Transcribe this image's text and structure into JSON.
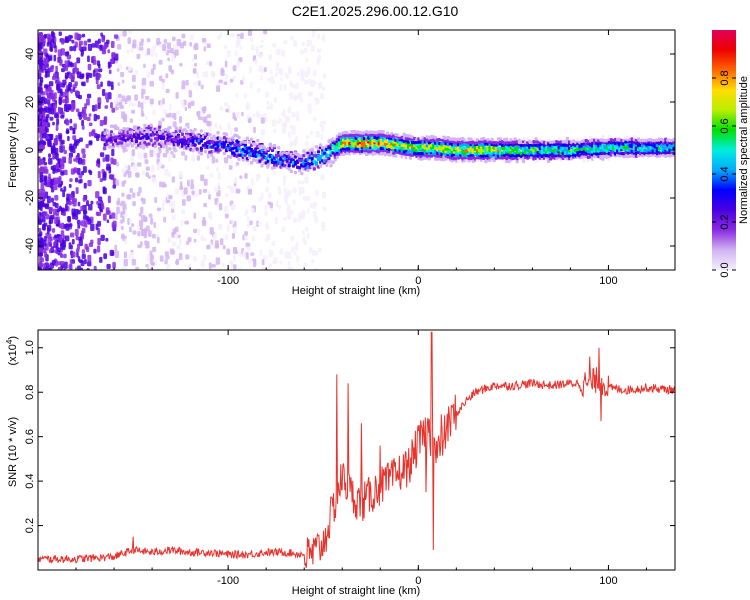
{
  "title": "C2E1.2025.296.00.12.G10",
  "chart_data": [
    {
      "type": "heatmap",
      "title": "C2E1.2025.296.00.12.G10",
      "xlabel": "Height of straight line (km)",
      "ylabel": "Frequency (Hz)",
      "xlim": [
        -200,
        135
      ],
      "ylim": [
        -50,
        50
      ],
      "x_ticks": [
        -100,
        0,
        100
      ],
      "x_tick_labels": [
        "-100",
        "0",
        "100"
      ],
      "y_ticks": [
        -40,
        -20,
        0,
        20,
        40
      ],
      "y_tick_labels": [
        "-40",
        "-20",
        "0",
        "20",
        "40"
      ],
      "colorbar": {
        "label": "Normalized spectral amplitude",
        "range": [
          0,
          1
        ],
        "ticks": [
          0.0,
          0.2,
          0.4,
          0.6,
          0.8
        ],
        "tick_labels": [
          "0.0",
          "0.2",
          "0.4",
          "0.6",
          "0.8"
        ],
        "colors": [
          "#f4eefc",
          "#d2b4f2",
          "#8a2be2",
          "#4a00e0",
          "#0000ff",
          "#00aaff",
          "#00eedd",
          "#00e000",
          "#bbee00",
          "#ffdd00",
          "#ff6600",
          "#ee0000",
          "#e0005a"
        ]
      },
      "ridge": {
        "x": [
          -160,
          -150,
          -140,
          -130,
          -120,
          -110,
          -100,
          -90,
          -80,
          -70,
          -60,
          -55,
          -50,
          -45,
          -40,
          -30,
          -20,
          -10,
          0,
          10,
          20,
          40,
          60,
          80,
          100,
          120,
          135
        ],
        "frequency": [
          5,
          6,
          6,
          5,
          4,
          3,
          2,
          0,
          -2,
          -4,
          -5,
          -4,
          -2,
          0,
          3,
          3,
          3,
          2,
          1,
          1,
          0,
          0,
          0,
          0,
          1,
          1,
          1
        ],
        "amplitude": [
          0.25,
          0.28,
          0.3,
          0.3,
          0.35,
          0.35,
          0.4,
          0.4,
          0.42,
          0.4,
          0.42,
          0.45,
          0.5,
          0.6,
          0.8,
          0.85,
          0.8,
          0.75,
          0.7,
          0.75,
          0.8,
          0.7,
          0.6,
          0.55,
          0.55,
          0.5,
          0.5
        ]
      }
    },
    {
      "type": "line",
      "ylabel": "SNR (10 * v/v)",
      "y_scale_label": "(x10",
      "y_scale_exponent": "4",
      "y_scale_suffix": ")",
      "xlabel": "Height of straight line (km)",
      "xlim": [
        -200,
        135
      ],
      "ylim": [
        0,
        1.08
      ],
      "x_ticks": [
        -100,
        0,
        100
      ],
      "x_tick_labels": [
        "-100",
        "0",
        "100"
      ],
      "y_ticks": [
        0.2,
        0.4,
        0.6,
        0.8,
        1.0
      ],
      "y_tick_labels": [
        "0.2",
        "0.4",
        "0.6",
        "0.8",
        "1.0"
      ],
      "color": "#e8322c",
      "x": [
        -200,
        -180,
        -160,
        -150,
        -140,
        -130,
        -120,
        -110,
        -100,
        -90,
        -80,
        -70,
        -60,
        -55,
        -50,
        -45,
        -40,
        -35,
        -30,
        -25,
        -20,
        -15,
        -10,
        -5,
        0,
        5,
        10,
        15,
        20,
        25,
        30,
        40,
        50,
        60,
        70,
        80,
        90,
        95,
        100,
        110,
        120,
        135
      ],
      "values": [
        0.02,
        0.02,
        0.03,
        0.06,
        0.05,
        0.06,
        0.05,
        0.05,
        0.04,
        0.04,
        0.05,
        0.05,
        0.04,
        0.06,
        0.1,
        0.25,
        0.4,
        0.32,
        0.28,
        0.32,
        0.36,
        0.38,
        0.42,
        0.45,
        0.55,
        0.62,
        0.5,
        0.62,
        0.7,
        0.76,
        0.8,
        0.83,
        0.83,
        0.84,
        0.83,
        0.84,
        0.84,
        0.86,
        0.82,
        0.81,
        0.82,
        0.81
      ],
      "spikes": [
        {
          "x": -150,
          "value": 0.15
        },
        {
          "x": -43,
          "value": 0.88
        },
        {
          "x": -37,
          "value": 0.84
        },
        {
          "x": -30,
          "value": 0.66
        },
        {
          "x": -20,
          "value": 0.56
        },
        {
          "x": 4,
          "value": 0.35
        },
        {
          "x": 7,
          "value": 1.07
        },
        {
          "x": 8,
          "value": 0.09
        },
        {
          "x": 12,
          "value": 0.7
        },
        {
          "x": 90,
          "value": 0.96
        },
        {
          "x": 95,
          "value": 1.0
        },
        {
          "x": 96,
          "value": 0.67
        }
      ]
    }
  ]
}
